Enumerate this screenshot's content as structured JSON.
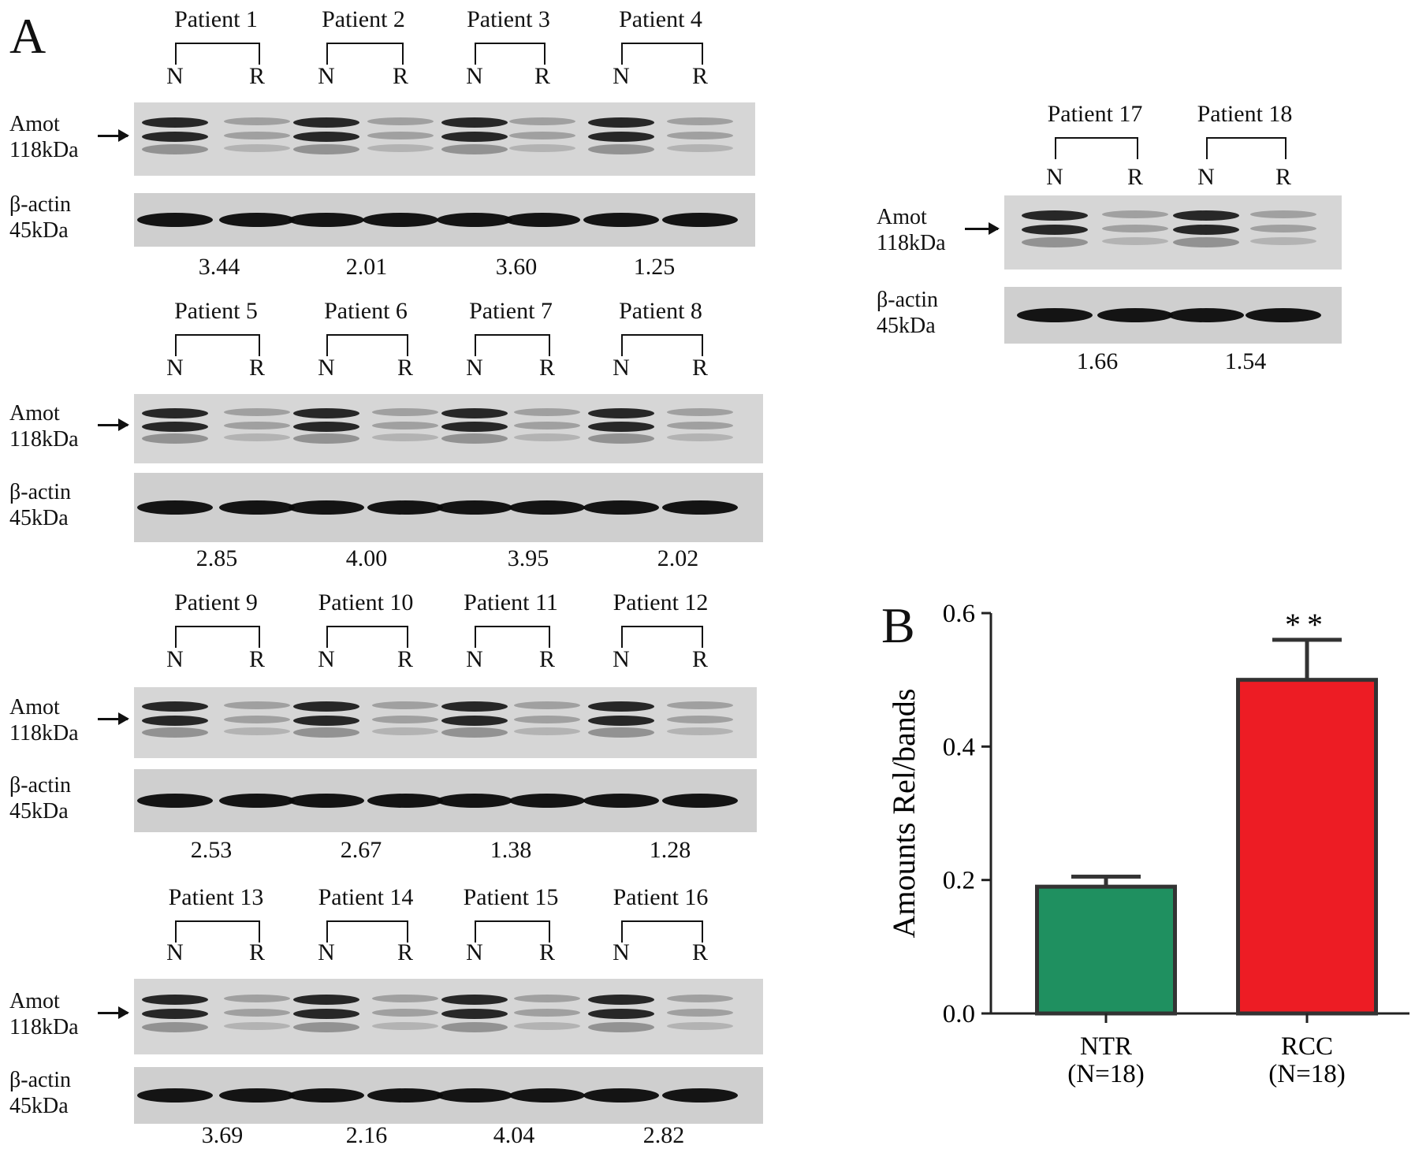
{
  "panel_a": {
    "letter": "A",
    "lane_n": "N",
    "lane_r": "R",
    "amot_label": "Amot",
    "amot_size": "118kDa",
    "actin_label": "β-actin",
    "actin_size": "45kDa",
    "groups": [
      {
        "patients": [
          "Patient 1",
          "Patient 2",
          "Patient 3",
          "Patient 4"
        ],
        "ratios": [
          "3.44",
          "2.01",
          "3.60",
          "1.25"
        ]
      },
      {
        "patients": [
          "Patient 5",
          "Patient 6",
          "Patient 7",
          "Patient 8"
        ],
        "ratios": [
          "2.85",
          "4.00",
          "3.95",
          "2.02"
        ]
      },
      {
        "patients": [
          "Patient 9",
          "Patient 10",
          "Patient 11",
          "Patient 12"
        ],
        "ratios": [
          "2.53",
          "2.67",
          "1.38",
          "1.28"
        ]
      },
      {
        "patients": [
          "Patient 13",
          "Patient 14",
          "Patient 15",
          "Patient 16"
        ],
        "ratios": [
          "3.69",
          "2.16",
          "4.04",
          "2.82"
        ]
      },
      {
        "patients": [
          "Patient 17",
          "Patient 18"
        ],
        "ratios": [
          "1.66",
          "1.54"
        ]
      }
    ]
  },
  "panel_b": {
    "letter": "B"
  },
  "chart_data": {
    "type": "bar",
    "categories": [
      "NTR",
      "RCC"
    ],
    "category_sublabels": [
      "(N=18)",
      "(N=18)"
    ],
    "values": [
      0.19,
      0.5
    ],
    "errors": [
      0.015,
      0.06
    ],
    "colors": [
      "#1f9060",
      "#ed1c24"
    ],
    "ylabel": "Amounts Rel/bands",
    "ylim": [
      0.0,
      0.6
    ],
    "yticks": [
      "0.0",
      "0.2",
      "0.4",
      "0.6"
    ],
    "annotation": "**",
    "annotation_on": "RCC"
  }
}
